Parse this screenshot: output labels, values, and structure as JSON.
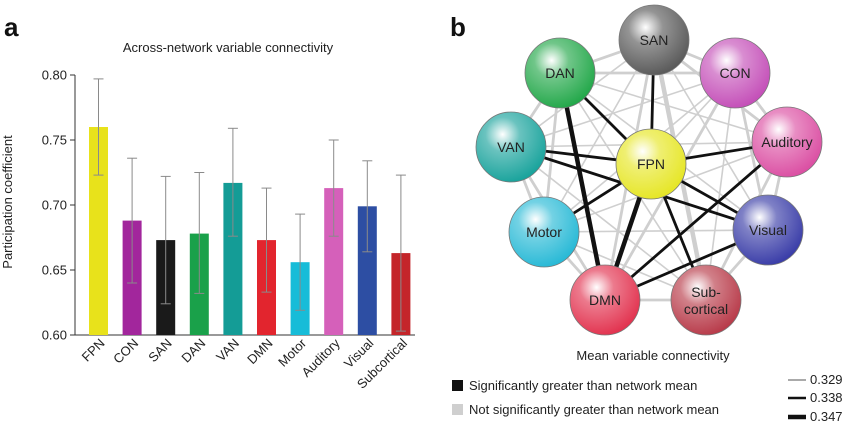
{
  "panel_a_label": "a",
  "panel_b_label": "b",
  "chart_data": [
    {
      "type": "bar",
      "title": "Across-network variable connectivity",
      "xlabel": "",
      "ylabel": "Participation coefficient",
      "ylim": [
        0.6,
        0.8
      ],
      "yticks": [
        "0.60",
        "0.65",
        "0.70",
        "0.75",
        "0.80"
      ],
      "grid": false,
      "categories": [
        "FPN",
        "CON",
        "SAN",
        "DAN",
        "VAN",
        "DMN",
        "Motor",
        "Auditory",
        "Visual",
        "Subcortical"
      ],
      "values": [
        0.76,
        0.688,
        0.673,
        0.678,
        0.717,
        0.673,
        0.656,
        0.713,
        0.699,
        0.663
      ],
      "error_high": [
        0.797,
        0.736,
        0.722,
        0.725,
        0.759,
        0.713,
        0.693,
        0.75,
        0.734,
        0.723
      ],
      "error_low": [
        0.723,
        0.64,
        0.624,
        0.632,
        0.676,
        0.633,
        0.619,
        0.676,
        0.664,
        0.603
      ],
      "colors": [
        "#e8e21b",
        "#a2269c",
        "#1a1a1a",
        "#1aa14a",
        "#149c96",
        "#e2252e",
        "#17bcd8",
        "#d560ba",
        "#2d4ea3",
        "#c4252a"
      ]
    },
    {
      "type": "network",
      "title": "Mean variable connectivity",
      "nodes": [
        {
          "id": "SAN",
          "label": "SAN",
          "color": "#5a5a5a"
        },
        {
          "id": "DAN",
          "label": "DAN",
          "color": "#23a84a"
        },
        {
          "id": "CON",
          "label": "CON",
          "color": "#c44fb8"
        },
        {
          "id": "VAN",
          "label": "VAN",
          "color": "#19a39c"
        },
        {
          "id": "FPN",
          "label": "FPN",
          "color": "#e6e626"
        },
        {
          "id": "Auditory",
          "label": "Auditory",
          "color": "#db4fa3"
        },
        {
          "id": "Motor",
          "label": "Motor",
          "color": "#28b9d6"
        },
        {
          "id": "Visual",
          "label": "Visual",
          "color": "#3a3da8"
        },
        {
          "id": "DMN",
          "label": "DMN",
          "color": "#e2334f"
        },
        {
          "id": "Subcortical",
          "label": "Sub-\ncortical",
          "color": "#b83b4a"
        }
      ],
      "significant_edges": [
        {
          "a": "FPN",
          "b": "SAN",
          "weight": 0.338
        },
        {
          "a": "FPN",
          "b": "DAN",
          "weight": 0.338
        },
        {
          "a": "FPN",
          "b": "VAN",
          "weight": 0.338
        },
        {
          "a": "FPN",
          "b": "Auditory",
          "weight": 0.338
        },
        {
          "a": "FPN",
          "b": "Visual",
          "weight": 0.338
        },
        {
          "a": "FPN",
          "b": "DMN",
          "weight": 0.347
        },
        {
          "a": "FPN",
          "b": "Motor",
          "weight": 0.338
        },
        {
          "a": "FPN",
          "b": "Subcortical",
          "weight": 0.338
        },
        {
          "a": "DAN",
          "b": "DMN",
          "weight": 0.347
        },
        {
          "a": "VAN",
          "b": "Visual",
          "weight": 0.338
        },
        {
          "a": "DMN",
          "b": "Visual",
          "weight": 0.338
        },
        {
          "a": "DMN",
          "b": "Auditory",
          "weight": 0.338
        }
      ],
      "nonsignificant_edges": [
        {
          "a": "SAN",
          "b": "DAN",
          "weight": 0.338
        },
        {
          "a": "SAN",
          "b": "CON",
          "weight": 0.338
        },
        {
          "a": "SAN",
          "b": "VAN",
          "weight": 0.329
        },
        {
          "a": "SAN",
          "b": "Auditory",
          "weight": 0.338
        },
        {
          "a": "SAN",
          "b": "Motor",
          "weight": 0.329
        },
        {
          "a": "SAN",
          "b": "Visual",
          "weight": 0.329
        },
        {
          "a": "SAN",
          "b": "DMN",
          "weight": 0.338
        },
        {
          "a": "SAN",
          "b": "Subcortical",
          "weight": 0.347
        },
        {
          "a": "DAN",
          "b": "CON",
          "weight": 0.338
        },
        {
          "a": "DAN",
          "b": "VAN",
          "weight": 0.338
        },
        {
          "a": "DAN",
          "b": "Auditory",
          "weight": 0.329
        },
        {
          "a": "DAN",
          "b": "Motor",
          "weight": 0.338
        },
        {
          "a": "DAN",
          "b": "Visual",
          "weight": 0.329
        },
        {
          "a": "DAN",
          "b": "Subcortical",
          "weight": 0.329
        },
        {
          "a": "CON",
          "b": "FPN",
          "weight": 0.329
        },
        {
          "a": "CON",
          "b": "VAN",
          "weight": 0.329
        },
        {
          "a": "CON",
          "b": "Auditory",
          "weight": 0.338
        },
        {
          "a": "CON",
          "b": "Motor",
          "weight": 0.329
        },
        {
          "a": "CON",
          "b": "Visual",
          "weight": 0.338
        },
        {
          "a": "CON",
          "b": "DMN",
          "weight": 0.338
        },
        {
          "a": "CON",
          "b": "Subcortical",
          "weight": 0.329
        },
        {
          "a": "VAN",
          "b": "Motor",
          "weight": 0.338
        },
        {
          "a": "VAN",
          "b": "DMN",
          "weight": 0.338
        },
        {
          "a": "VAN",
          "b": "Auditory",
          "weight": 0.329
        },
        {
          "a": "VAN",
          "b": "Subcortical",
          "weight": 0.329
        },
        {
          "a": "Auditory",
          "b": "Visual",
          "weight": 0.338
        },
        {
          "a": "Auditory",
          "b": "Motor",
          "weight": 0.329
        },
        {
          "a": "Auditory",
          "b": "Subcortical",
          "weight": 0.338
        },
        {
          "a": "Motor",
          "b": "DMN",
          "weight": 0.338
        },
        {
          "a": "Motor",
          "b": "Visual",
          "weight": 0.329
        },
        {
          "a": "Motor",
          "b": "Subcortical",
          "weight": 0.329
        },
        {
          "a": "Visual",
          "b": "Subcortical",
          "weight": 0.338
        },
        {
          "a": "DMN",
          "b": "Subcortical",
          "weight": 0.338
        }
      ],
      "edge_colors": {
        "significant": "#111111",
        "nonsignificant": "#cfcfcf"
      },
      "legend": {
        "significant": "Significantly greater than network mean",
        "nonsignificant": "Not significantly greater than network mean",
        "weights": [
          "0.329",
          "0.338",
          "0.347"
        ]
      }
    }
  ]
}
